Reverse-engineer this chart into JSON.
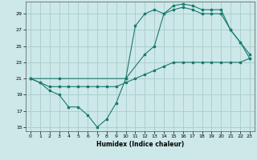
{
  "xlabel": "Humidex (Indice chaleur)",
  "xlim": [
    -0.5,
    23.5
  ],
  "ylim": [
    14.5,
    30.5
  ],
  "yticks": [
    15,
    17,
    19,
    21,
    23,
    25,
    27,
    29
  ],
  "xticks": [
    0,
    1,
    2,
    3,
    4,
    5,
    6,
    7,
    8,
    9,
    10,
    11,
    12,
    13,
    14,
    15,
    16,
    17,
    18,
    19,
    20,
    21,
    22,
    23
  ],
  "bg_color": "#cce8e8",
  "line_color": "#1a7a6e",
  "grid_color": "#aacccc",
  "line1_x": [
    0,
    1,
    2,
    3,
    4,
    5,
    6,
    7,
    8,
    9,
    10,
    11,
    12,
    13,
    14,
    15,
    16,
    17,
    18,
    19,
    20,
    21,
    22,
    23
  ],
  "line1_y": [
    21,
    20.5,
    20,
    20,
    20,
    20,
    20,
    20,
    20,
    20,
    20.5,
    21,
    21.5,
    22,
    22.5,
    23,
    23,
    23,
    23,
    23,
    23,
    23,
    23,
    23.5
  ],
  "line2_x": [
    0,
    1,
    2,
    3,
    4,
    5,
    6,
    7,
    8,
    9,
    10,
    11,
    12,
    13,
    14,
    15,
    16,
    17,
    18,
    19,
    20,
    21,
    22,
    23
  ],
  "line2_y": [
    21,
    20.5,
    19.5,
    19,
    17.5,
    17.5,
    16.5,
    15,
    16,
    18,
    21,
    27.5,
    29,
    29.5,
    29,
    30,
    30.2,
    30,
    29.5,
    29.5,
    29.5,
    27,
    25.5,
    24
  ],
  "line3_x": [
    0,
    3,
    10,
    12,
    13,
    14,
    15,
    16,
    17,
    18,
    19,
    20,
    21,
    22,
    23
  ],
  "line3_y": [
    21,
    21,
    21,
    24,
    25,
    29,
    29.5,
    29.8,
    29.5,
    29,
    29,
    29,
    27,
    25.5,
    23.5
  ]
}
